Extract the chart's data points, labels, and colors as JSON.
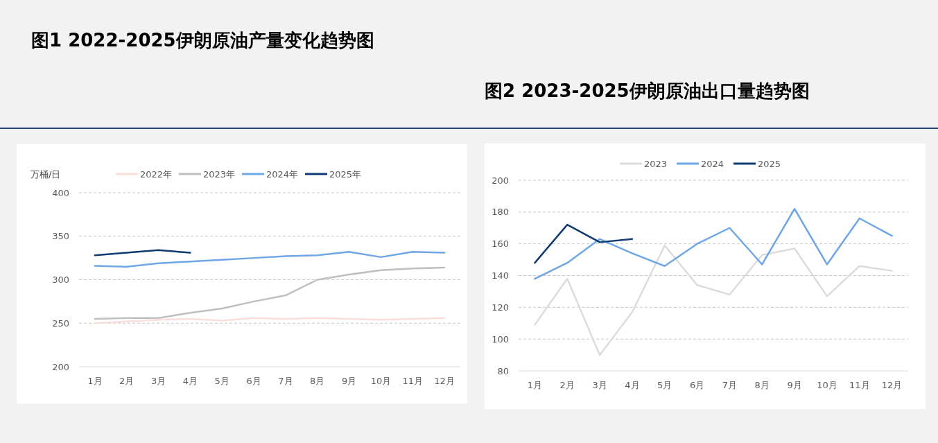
{
  "chart_data": [
    {
      "type": "line",
      "title": "图1 2022-2025伊朗原油产量变化趋势图",
      "ylabel": "万桶/日",
      "categories": [
        "1月",
        "2月",
        "3月",
        "4月",
        "5月",
        "6月",
        "7月",
        "8月",
        "9月",
        "10月",
        "11月",
        "12月"
      ],
      "ylim": [
        200,
        400
      ],
      "yticks": [
        200,
        250,
        300,
        350,
        400
      ],
      "grid": "y",
      "legend": "top",
      "line_style": "solid",
      "series": [
        {
          "name": "2022年",
          "color": "#f9dedb",
          "values": [
            250,
            252,
            254,
            255,
            253,
            256,
            255,
            256,
            255,
            254,
            255,
            256
          ]
        },
        {
          "name": "2023年",
          "color": "#bfbfbf",
          "values": [
            255,
            256,
            256,
            262,
            267,
            275,
            282,
            300,
            306,
            311,
            313,
            314
          ]
        },
        {
          "name": "2024年",
          "color": "#6fa6e6",
          "values": [
            316,
            315,
            319,
            321,
            323,
            325,
            327,
            328,
            332,
            326,
            332,
            331
          ]
        },
        {
          "name": "2025年",
          "color": "#0e3a72",
          "values": [
            328,
            331,
            334,
            331,
            null,
            null,
            null,
            null,
            null,
            null,
            null,
            null
          ]
        }
      ]
    },
    {
      "type": "line",
      "title": "图2 2023-2025伊朗原油出口量趋势图",
      "categories": [
        "1月",
        "2月",
        "3月",
        "4月",
        "5月",
        "6月",
        "7月",
        "8月",
        "9月",
        "10月",
        "11月",
        "12月"
      ],
      "ylim": [
        80,
        200
      ],
      "yticks": [
        80,
        100,
        120,
        140,
        160,
        180,
        200
      ],
      "grid": "y",
      "legend": "top",
      "line_style": "solid",
      "series": [
        {
          "name": "2023",
          "color": "#dcdcdc",
          "values": [
            109,
            138,
            90,
            117,
            159,
            134,
            128,
            153,
            157,
            127,
            146,
            143
          ]
        },
        {
          "name": "2024",
          "color": "#6fa6e6",
          "values": [
            138,
            148,
            163,
            154,
            146,
            160,
            170,
            147,
            182,
            147,
            176,
            165
          ]
        },
        {
          "name": "2025",
          "color": "#0e3a72",
          "values": [
            148,
            172,
            161,
            163,
            null,
            null,
            null,
            null,
            null,
            null,
            null,
            null
          ]
        }
      ]
    }
  ]
}
